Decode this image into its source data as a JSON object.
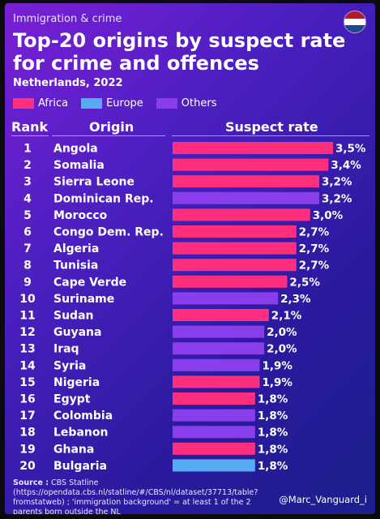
{
  "kicker": "Immigration & crime",
  "title": "Top-20 origins by suspect rate for crime and offences",
  "subtitle": "Netherlands, 2022",
  "legend": [
    {
      "label": "Africa",
      "color": "#ff2f7e"
    },
    {
      "label": "Europe",
      "color": "#58aaf5"
    },
    {
      "label": "Others",
      "color": "#8a3dea"
    }
  ],
  "headers": {
    "rank": "Rank",
    "origin": "Origin",
    "rate": "Suspect rate"
  },
  "source": {
    "label": "Source :",
    "text": "CBS Statline (https://opendata.cbs.nl/statline/#/CBS/nl/dataset/37713/table?fromstatweb) ; 'immigration background' = at least 1 of the 2 parents born outside the NL"
  },
  "handle": "@Marc_Vanguard_i",
  "flag_colors": [
    "#ae1c28",
    "#ffffff",
    "#21468b"
  ],
  "chart_data": {
    "type": "bar",
    "orientation": "horizontal",
    "title": "Top-20 origins by suspect rate for crime and offences",
    "unit": "%",
    "decimal_separator": ",",
    "xlim": [
      0,
      3.5
    ],
    "rows": [
      {
        "rank": "1",
        "origin": "Angola",
        "value": 3.5,
        "label": "3,5%",
        "group": "Africa"
      },
      {
        "rank": "2",
        "origin": "Somalia",
        "value": 3.4,
        "label": "3,4%",
        "group": "Africa"
      },
      {
        "rank": "3",
        "origin": "Sierra Leone",
        "value": 3.2,
        "label": "3,2%",
        "group": "Africa"
      },
      {
        "rank": "4",
        "origin": "Dominican Rep.",
        "value": 3.2,
        "label": "3,2%",
        "group": "Others"
      },
      {
        "rank": "5",
        "origin": "Morocco",
        "value": 3.0,
        "label": "3,0%",
        "group": "Africa"
      },
      {
        "rank": "6",
        "origin": "Congo Dem. Rep.",
        "value": 2.7,
        "label": "2,7%",
        "group": "Africa"
      },
      {
        "rank": "7",
        "origin": "Algeria",
        "value": 2.7,
        "label": "2,7%",
        "group": "Africa"
      },
      {
        "rank": "8",
        "origin": "Tunisia",
        "value": 2.7,
        "label": "2,7%",
        "group": "Africa"
      },
      {
        "rank": "9",
        "origin": "Cape Verde",
        "value": 2.5,
        "label": "2,5%",
        "group": "Africa"
      },
      {
        "rank": "10",
        "origin": "Suriname",
        "value": 2.3,
        "label": "2,3%",
        "group": "Others"
      },
      {
        "rank": "11",
        "origin": "Sudan",
        "value": 2.1,
        "label": "2,1%",
        "group": "Africa"
      },
      {
        "rank": "12",
        "origin": "Guyana",
        "value": 2.0,
        "label": "2,0%",
        "group": "Others"
      },
      {
        "rank": "13",
        "origin": "Iraq",
        "value": 2.0,
        "label": "2,0%",
        "group": "Others"
      },
      {
        "rank": "14",
        "origin": "Syria",
        "value": 1.9,
        "label": "1,9%",
        "group": "Others"
      },
      {
        "rank": "15",
        "origin": "Nigeria",
        "value": 1.9,
        "label": "1,9%",
        "group": "Africa"
      },
      {
        "rank": "16",
        "origin": "Egypt",
        "value": 1.8,
        "label": "1,8%",
        "group": "Africa"
      },
      {
        "rank": "17",
        "origin": "Colombia",
        "value": 1.8,
        "label": "1,8%",
        "group": "Others"
      },
      {
        "rank": "18",
        "origin": "Lebanon",
        "value": 1.8,
        "label": "1,8%",
        "group": "Others"
      },
      {
        "rank": "19",
        "origin": "Ghana",
        "value": 1.8,
        "label": "1,8%",
        "group": "Africa"
      },
      {
        "rank": "20",
        "origin": "Bulgaria",
        "value": 1.8,
        "label": "1,8%",
        "group": "Europe"
      }
    ]
  }
}
